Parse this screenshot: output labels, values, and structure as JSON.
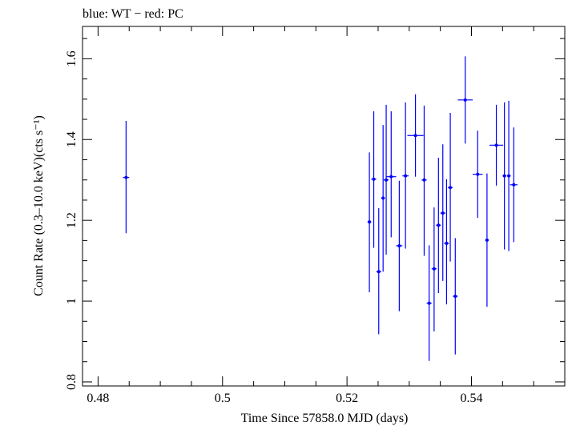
{
  "chart_data": {
    "type": "scatter",
    "title": "blue: WT − red: PC",
    "xlabel": "Time Since 57858.0 MJD (days)",
    "ylabel": "Count Rate (0.3–10.0 keV)(cts s⁻¹)",
    "xlim": [
      0.4775,
      0.555
    ],
    "ylim": [
      0.79,
      1.68
    ],
    "x_ticks_major": [
      0.48,
      0.5,
      0.52,
      0.54
    ],
    "x_tick_labels": [
      "0.48",
      "0.5",
      "0.52",
      "0.54"
    ],
    "y_ticks_major": [
      0.8,
      1.0,
      1.2,
      1.4,
      1.6
    ],
    "y_tick_labels": [
      "0.8",
      "1",
      "1.2",
      "1.4",
      "1.6"
    ],
    "grid": false,
    "legend": "none",
    "series": [
      {
        "color": "#0000ff",
        "points": [
          {
            "x": 0.4845,
            "y": 1.306,
            "xerr": 0.0005,
            "ylo": 1.168,
            "yhi": 1.446
          },
          {
            "x": 0.5236,
            "y": 1.196,
            "xerr": 0.0003,
            "ylo": 1.022,
            "yhi": 1.368
          },
          {
            "x": 0.5243,
            "y": 1.302,
            "xerr": 0.0004,
            "ylo": 1.132,
            "yhi": 1.47
          },
          {
            "x": 0.5251,
            "y": 1.073,
            "xerr": 0.0004,
            "ylo": 0.918,
            "yhi": 1.23
          },
          {
            "x": 0.5258,
            "y": 1.255,
            "xerr": 0.0003,
            "ylo": 1.073,
            "yhi": 1.436
          },
          {
            "x": 0.5263,
            "y": 1.3,
            "xerr": 0.0004,
            "ylo": 1.115,
            "yhi": 1.486
          },
          {
            "x": 0.5271,
            "y": 1.308,
            "xerr": 0.0008,
            "ylo": 1.158,
            "yhi": 1.47
          },
          {
            "x": 0.5284,
            "y": 1.137,
            "xerr": 0.0005,
            "ylo": 0.975,
            "yhi": 1.298
          },
          {
            "x": 0.5294,
            "y": 1.31,
            "xerr": 0.0005,
            "ylo": 1.13,
            "yhi": 1.492
          },
          {
            "x": 0.531,
            "y": 1.41,
            "xerr": 0.0013,
            "ylo": 1.308,
            "yhi": 1.512
          },
          {
            "x": 0.5324,
            "y": 1.3,
            "xerr": 0.0004,
            "ylo": 1.112,
            "yhi": 1.484
          },
          {
            "x": 0.5332,
            "y": 0.995,
            "xerr": 0.0004,
            "ylo": 0.852,
            "yhi": 1.138
          },
          {
            "x": 0.534,
            "y": 1.08,
            "xerr": 0.0004,
            "ylo": 0.925,
            "yhi": 1.232
          },
          {
            "x": 0.5347,
            "y": 1.188,
            "xerr": 0.0004,
            "ylo": 1.02,
            "yhi": 1.355
          },
          {
            "x": 0.5354,
            "y": 1.218,
            "xerr": 0.0004,
            "ylo": 1.05,
            "yhi": 1.388
          },
          {
            "x": 0.536,
            "y": 1.143,
            "xerr": 0.0004,
            "ylo": 0.992,
            "yhi": 1.302
          },
          {
            "x": 0.5366,
            "y": 1.281,
            "xerr": 0.0004,
            "ylo": 1.098,
            "yhi": 1.466
          },
          {
            "x": 0.5374,
            "y": 1.012,
            "xerr": 0.0004,
            "ylo": 0.868,
            "yhi": 1.156
          },
          {
            "x": 0.539,
            "y": 1.498,
            "xerr": 0.0012,
            "ylo": 1.39,
            "yhi": 1.606
          },
          {
            "x": 0.541,
            "y": 1.314,
            "xerr": 0.0008,
            "ylo": 1.206,
            "yhi": 1.422
          },
          {
            "x": 0.5425,
            "y": 1.151,
            "xerr": 0.0003,
            "ylo": 0.986,
            "yhi": 1.316
          },
          {
            "x": 0.544,
            "y": 1.386,
            "xerr": 0.0011,
            "ylo": 1.286,
            "yhi": 1.486
          },
          {
            "x": 0.5453,
            "y": 1.31,
            "xerr": 0.0003,
            "ylo": 1.128,
            "yhi": 1.492
          },
          {
            "x": 0.546,
            "y": 1.31,
            "xerr": 0.0003,
            "ylo": 1.124,
            "yhi": 1.496
          },
          {
            "x": 0.5468,
            "y": 1.288,
            "xerr": 0.0006,
            "ylo": 1.146,
            "yhi": 1.43
          }
        ]
      }
    ]
  }
}
